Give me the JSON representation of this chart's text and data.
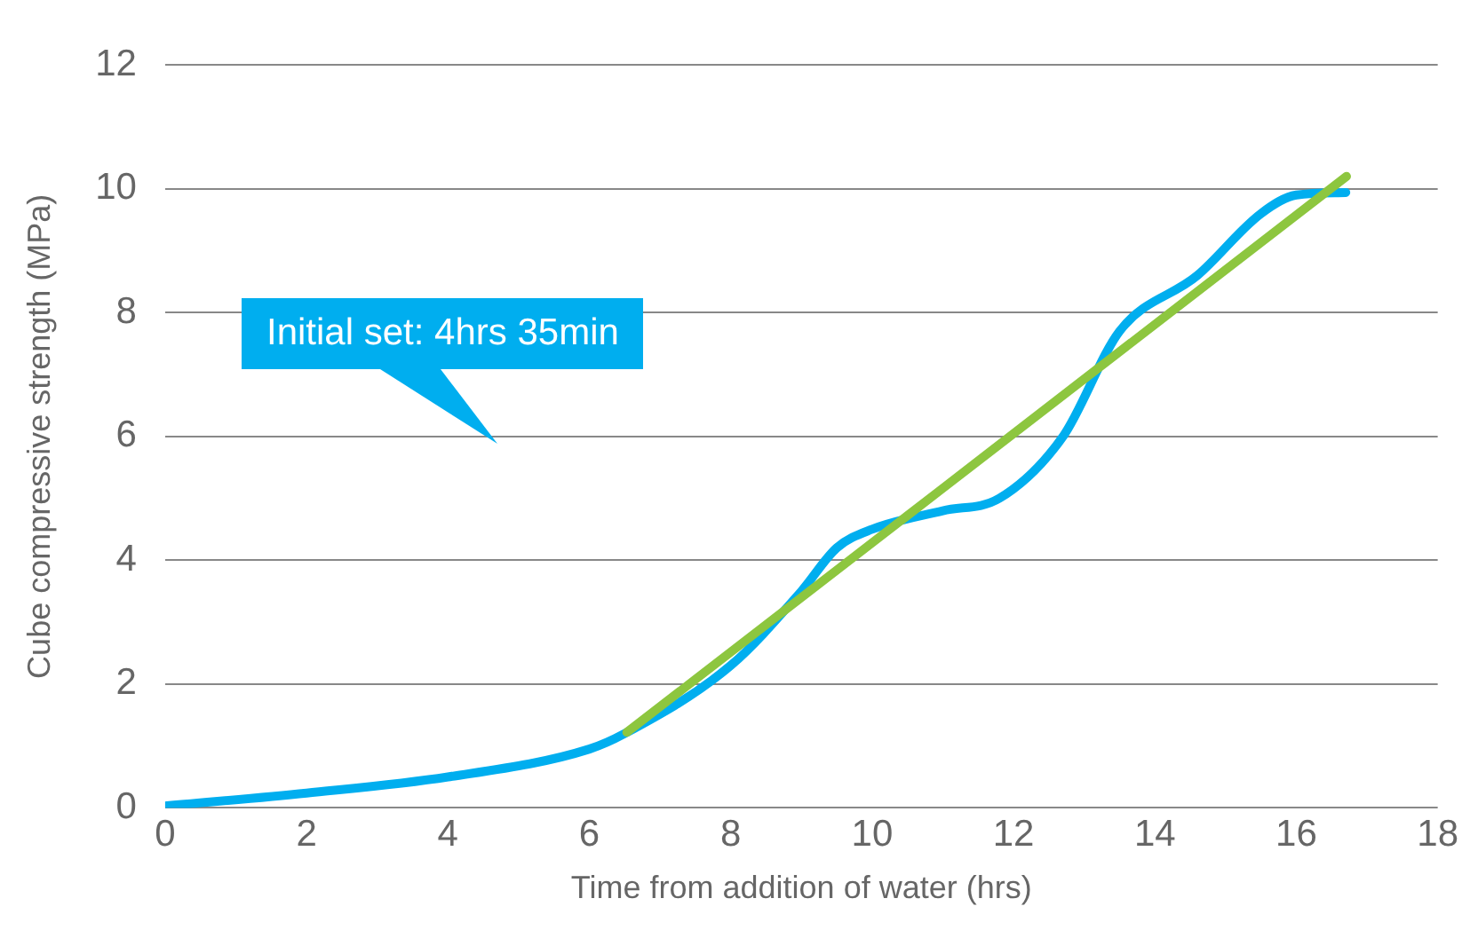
{
  "chart_data": {
    "type": "line",
    "xlabel": "Time from addition of water (hrs)",
    "ylabel": "Cube compressive strength (MPa)",
    "xlim": [
      0,
      18
    ],
    "xticks": [
      0,
      2,
      4,
      6,
      8,
      10,
      12,
      14,
      16,
      18
    ],
    "ylim": [
      0,
      12
    ],
    "yticks": [
      0,
      2,
      4,
      6,
      8,
      10,
      12
    ],
    "grid": "y",
    "legend": false,
    "marker": "none",
    "line_style": "solid",
    "series": [
      {
        "color": "#8dc63f",
        "x": [
          6.53,
          16.71
        ],
        "values": [
          1.22,
          10.2
        ]
      },
      {
        "color": "#00aeef",
        "x": [
          0,
          2,
          4,
          6,
          6.5,
          8,
          9,
          9.5,
          10,
          11,
          11.8,
          12.7,
          13.5,
          14.6,
          15.5,
          16,
          16.7
        ],
        "values": [
          0.03,
          0.24,
          0.5,
          0.95,
          1.2,
          2.3,
          3.5,
          4.2,
          4.5,
          4.8,
          5.0,
          6.0,
          7.7,
          8.6,
          9.6,
          9.9,
          9.94
        ]
      }
    ],
    "annotations": [
      "Initial set: 4hrs 35min"
    ]
  }
}
